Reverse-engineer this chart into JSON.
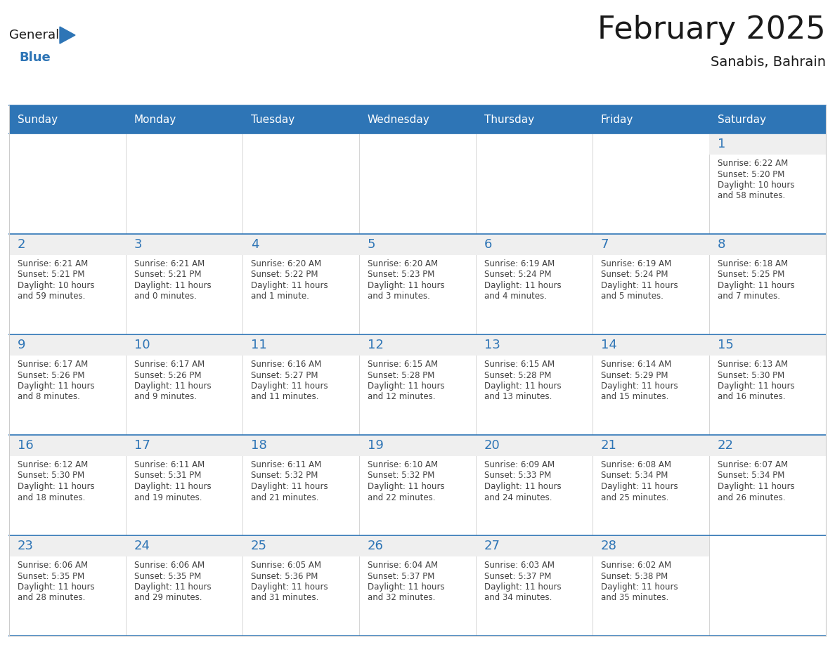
{
  "title": "February 2025",
  "subtitle": "Sanabis, Bahrain",
  "days_of_week": [
    "Sunday",
    "Monday",
    "Tuesday",
    "Wednesday",
    "Thursday",
    "Friday",
    "Saturday"
  ],
  "header_bg": "#2E75B6",
  "header_text": "#FFFFFF",
  "cell_bg": "#FFFFFF",
  "cell_top_bg": "#EFEFEF",
  "border_color": "#CCCCCC",
  "week_line_color": "#2E75B6",
  "day_number_color": "#2E75B6",
  "info_color": "#404040",
  "title_color": "#1a1a1a",
  "logo_general_color": "#1a1a1a",
  "logo_blue_color": "#2E75B6",
  "weeks": [
    [
      null,
      null,
      null,
      null,
      null,
      null,
      1
    ],
    [
      2,
      3,
      4,
      5,
      6,
      7,
      8
    ],
    [
      9,
      10,
      11,
      12,
      13,
      14,
      15
    ],
    [
      16,
      17,
      18,
      19,
      20,
      21,
      22
    ],
    [
      23,
      24,
      25,
      26,
      27,
      28,
      null
    ]
  ],
  "sunrise": {
    "1": "6:22 AM",
    "2": "6:21 AM",
    "3": "6:21 AM",
    "4": "6:20 AM",
    "5": "6:20 AM",
    "6": "6:19 AM",
    "7": "6:19 AM",
    "8": "6:18 AM",
    "9": "6:17 AM",
    "10": "6:17 AM",
    "11": "6:16 AM",
    "12": "6:15 AM",
    "13": "6:15 AM",
    "14": "6:14 AM",
    "15": "6:13 AM",
    "16": "6:12 AM",
    "17": "6:11 AM",
    "18": "6:11 AM",
    "19": "6:10 AM",
    "20": "6:09 AM",
    "21": "6:08 AM",
    "22": "6:07 AM",
    "23": "6:06 AM",
    "24": "6:06 AM",
    "25": "6:05 AM",
    "26": "6:04 AM",
    "27": "6:03 AM",
    "28": "6:02 AM"
  },
  "sunset": {
    "1": "5:20 PM",
    "2": "5:21 PM",
    "3": "5:21 PM",
    "4": "5:22 PM",
    "5": "5:23 PM",
    "6": "5:24 PM",
    "7": "5:24 PM",
    "8": "5:25 PM",
    "9": "5:26 PM",
    "10": "5:26 PM",
    "11": "5:27 PM",
    "12": "5:28 PM",
    "13": "5:28 PM",
    "14": "5:29 PM",
    "15": "5:30 PM",
    "16": "5:30 PM",
    "17": "5:31 PM",
    "18": "5:32 PM",
    "19": "5:32 PM",
    "20": "5:33 PM",
    "21": "5:34 PM",
    "22": "5:34 PM",
    "23": "5:35 PM",
    "24": "5:35 PM",
    "25": "5:36 PM",
    "26": "5:37 PM",
    "27": "5:37 PM",
    "28": "5:38 PM"
  },
  "daylight": {
    "1": [
      "10 hours",
      "and 58 minutes."
    ],
    "2": [
      "10 hours",
      "and 59 minutes."
    ],
    "3": [
      "11 hours",
      "and 0 minutes."
    ],
    "4": [
      "11 hours",
      "and 1 minute."
    ],
    "5": [
      "11 hours",
      "and 3 minutes."
    ],
    "6": [
      "11 hours",
      "and 4 minutes."
    ],
    "7": [
      "11 hours",
      "and 5 minutes."
    ],
    "8": [
      "11 hours",
      "and 7 minutes."
    ],
    "9": [
      "11 hours",
      "and 8 minutes."
    ],
    "10": [
      "11 hours",
      "and 9 minutes."
    ],
    "11": [
      "11 hours",
      "and 11 minutes."
    ],
    "12": [
      "11 hours",
      "and 12 minutes."
    ],
    "13": [
      "11 hours",
      "and 13 minutes."
    ],
    "14": [
      "11 hours",
      "and 15 minutes."
    ],
    "15": [
      "11 hours",
      "and 16 minutes."
    ],
    "16": [
      "11 hours",
      "and 18 minutes."
    ],
    "17": [
      "11 hours",
      "and 19 minutes."
    ],
    "18": [
      "11 hours",
      "and 21 minutes."
    ],
    "19": [
      "11 hours",
      "and 22 minutes."
    ],
    "20": [
      "11 hours",
      "and 24 minutes."
    ],
    "21": [
      "11 hours",
      "and 25 minutes."
    ],
    "22": [
      "11 hours",
      "and 26 minutes."
    ],
    "23": [
      "11 hours",
      "and 28 minutes."
    ],
    "24": [
      "11 hours",
      "and 29 minutes."
    ],
    "25": [
      "11 hours",
      "and 31 minutes."
    ],
    "26": [
      "11 hours",
      "and 32 minutes."
    ],
    "27": [
      "11 hours",
      "and 34 minutes."
    ],
    "28": [
      "11 hours",
      "and 35 minutes."
    ]
  }
}
